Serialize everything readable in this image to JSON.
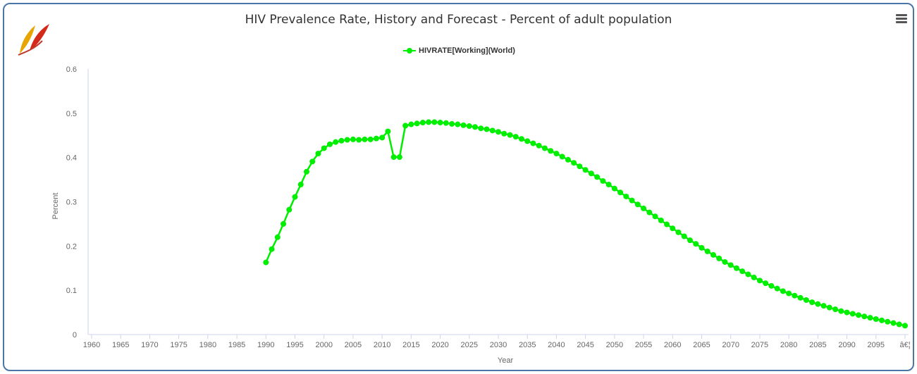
{
  "chart_data": {
    "type": "line",
    "title": "HIV Prevalence Rate, History and Forecast - Percent of adult population",
    "xlabel": "Year",
    "ylabel": "Percent",
    "ylim": [
      0,
      0.6
    ],
    "yticks": [
      "0",
      "0.1",
      "0.2",
      "0.3",
      "0.4",
      "0.5",
      "0.6"
    ],
    "xticks": [
      "1960",
      "1965",
      "1970",
      "1975",
      "1980",
      "1985",
      "1990",
      "1995",
      "2000",
      "2005",
      "2010",
      "2015",
      "2020",
      "2025",
      "2030",
      "2035",
      "2040",
      "2045",
      "2050",
      "2055",
      "2060",
      "2065",
      "2070",
      "2075",
      "2080",
      "2085",
      "2090",
      "2095",
      "â€¦"
    ],
    "xrange": [
      1960,
      2100
    ],
    "legend_position": "top-center",
    "series": [
      {
        "name": "HIVRATE[Working](World)",
        "color": "#00ee00",
        "x": [
          1990,
          1991,
          1992,
          1993,
          1994,
          1995,
          1996,
          1997,
          1998,
          1999,
          2000,
          2001,
          2002,
          2003,
          2004,
          2005,
          2006,
          2007,
          2008,
          2009,
          2010,
          2011,
          2012,
          2013,
          2014,
          2015,
          2016,
          2017,
          2018,
          2019,
          2020,
          2021,
          2022,
          2023,
          2024,
          2025,
          2026,
          2027,
          2028,
          2029,
          2030,
          2031,
          2032,
          2033,
          2034,
          2035,
          2036,
          2037,
          2038,
          2039,
          2040,
          2041,
          2042,
          2043,
          2044,
          2045,
          2046,
          2047,
          2048,
          2049,
          2050,
          2051,
          2052,
          2053,
          2054,
          2055,
          2056,
          2057,
          2058,
          2059,
          2060,
          2061,
          2062,
          2063,
          2064,
          2065,
          2066,
          2067,
          2068,
          2069,
          2070,
          2071,
          2072,
          2073,
          2074,
          2075,
          2076,
          2077,
          2078,
          2079,
          2080,
          2081,
          2082,
          2083,
          2084,
          2085,
          2086,
          2087,
          2088,
          2089,
          2090,
          2091,
          2092,
          2093,
          2094,
          2095,
          2096,
          2097,
          2098,
          2099,
          2100
        ],
        "values": [
          0.163,
          0.193,
          0.22,
          0.25,
          0.282,
          0.311,
          0.339,
          0.368,
          0.391,
          0.409,
          0.421,
          0.43,
          0.435,
          0.438,
          0.44,
          0.441,
          0.44,
          0.441,
          0.441,
          0.443,
          0.445,
          0.459,
          0.401,
          0.401,
          0.472,
          0.475,
          0.477,
          0.479,
          0.48,
          0.48,
          0.479,
          0.478,
          0.476,
          0.475,
          0.473,
          0.471,
          0.469,
          0.466,
          0.464,
          0.461,
          0.458,
          0.454,
          0.451,
          0.447,
          0.442,
          0.437,
          0.432,
          0.427,
          0.421,
          0.415,
          0.409,
          0.402,
          0.395,
          0.388,
          0.38,
          0.372,
          0.364,
          0.356,
          0.347,
          0.339,
          0.33,
          0.321,
          0.312,
          0.303,
          0.294,
          0.285,
          0.276,
          0.267,
          0.258,
          0.249,
          0.24,
          0.231,
          0.222,
          0.213,
          0.205,
          0.196,
          0.188,
          0.18,
          0.172,
          0.164,
          0.157,
          0.15,
          0.143,
          0.136,
          0.129,
          0.122,
          0.116,
          0.11,
          0.104,
          0.098,
          0.093,
          0.088,
          0.083,
          0.078,
          0.073,
          0.069,
          0.065,
          0.061,
          0.057,
          0.053,
          0.05,
          0.047,
          0.044,
          0.041,
          0.038,
          0.035,
          0.032,
          0.029,
          0.026,
          0.023,
          0.02
        ]
      }
    ]
  }
}
